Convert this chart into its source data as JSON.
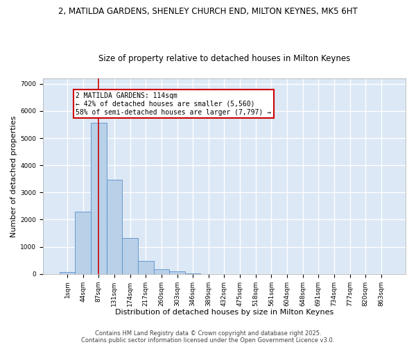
{
  "title_line1": "2, MATILDA GARDENS, SHENLEY CHURCH END, MILTON KEYNES, MK5 6HT",
  "title_line2": "Size of property relative to detached houses in Milton Keynes",
  "xlabel": "Distribution of detached houses by size in Milton Keynes",
  "ylabel": "Number of detached properties",
  "categories": [
    "1sqm",
    "44sqm",
    "87sqm",
    "131sqm",
    "174sqm",
    "217sqm",
    "260sqm",
    "303sqm",
    "346sqm",
    "389sqm",
    "432sqm",
    "475sqm",
    "518sqm",
    "561sqm",
    "604sqm",
    "648sqm",
    "691sqm",
    "734sqm",
    "777sqm",
    "820sqm",
    "863sqm"
  ],
  "values": [
    80,
    2300,
    5560,
    3460,
    1310,
    480,
    165,
    90,
    30,
    0,
    0,
    0,
    0,
    0,
    0,
    0,
    0,
    0,
    0,
    0,
    0
  ],
  "bar_color": "#b8d0e8",
  "bar_edge_color": "#5b8fc9",
  "background_color": "#dce8f5",
  "grid_color": "#ffffff",
  "annotation_text": "2 MATILDA GARDENS: 114sqm\n← 42% of detached houses are smaller (5,560)\n58% of semi-detached houses are larger (7,797) →",
  "annotation_box_color": "#ffffff",
  "annotation_box_edge": "#cc0000",
  "vline_x": 2,
  "ylim": [
    0,
    7200
  ],
  "yticks": [
    0,
    1000,
    2000,
    3000,
    4000,
    5000,
    6000,
    7000
  ],
  "footer_line1": "Contains HM Land Registry data © Crown copyright and database right 2025.",
  "footer_line2": "Contains public sector information licensed under the Open Government Licence v3.0.",
  "title_fontsize": 8.5,
  "subtitle_fontsize": 8.5,
  "tick_fontsize": 6.5,
  "label_fontsize": 8.0,
  "annotation_fontsize": 7.0,
  "footer_fontsize": 6.0
}
